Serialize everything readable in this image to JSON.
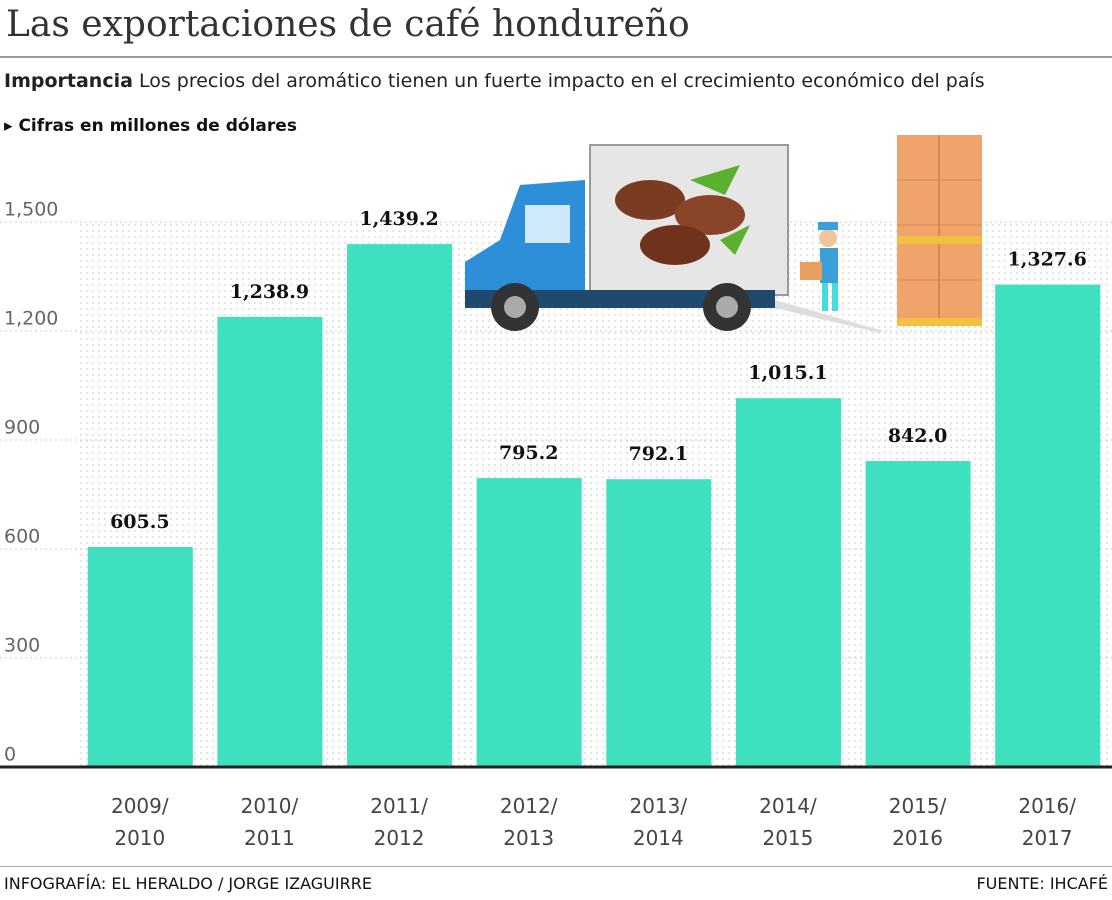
{
  "chart_data": {
    "type": "bar",
    "title": "Las exportaciones de café hondureño",
    "subtitle_lead": "Importancia",
    "subtitle": "Los precios del aromático tienen  un fuerte impacto en el crecimiento económico del país",
    "note": "▸ Cifras en millones de dólares",
    "credit": "INFOGRAFÍA: EL HERALDO / JORGE IZAGUIRRE",
    "source": "FUENTE: IHCAFÉ",
    "categories": [
      "2009/ 2010",
      "2010/ 2011",
      "2011/ 2012",
      "2012/ 2013",
      "2013/ 2014",
      "2014/ 2015",
      "2015/ 2016",
      "2016/ 2017"
    ],
    "values": [
      605.5,
      1238.9,
      1439.2,
      795.2,
      792.1,
      1015.1,
      842.0,
      1327.6
    ],
    "value_labels": [
      "605.5",
      "1,238.9",
      "1,439.2",
      "795.2",
      "792.1",
      "1,015.1",
      "842.0",
      "1,327.6"
    ],
    "color": "#3fe0bf",
    "ylim": [
      0,
      1500
    ],
    "yticks": [
      0,
      300,
      600,
      900,
      {
        "value": 1200,
        "label": "1,200"
      },
      {
        "value": 1500,
        "label": "1,500"
      }
    ],
    "grid": true
  }
}
